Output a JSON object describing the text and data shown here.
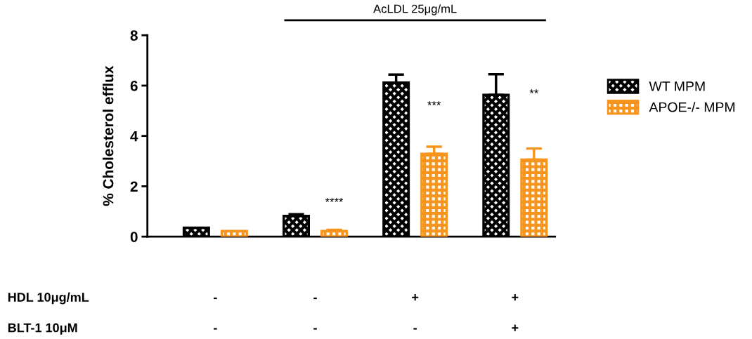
{
  "chart_data": {
    "type": "bar",
    "ylabel": "% Cholesterol efflux",
    "categories": [
      null,
      null,
      null,
      null
    ],
    "series": [
      {
        "name": "WT MPM",
        "color": "#000000",
        "values": [
          0.35,
          0.82,
          6.12,
          5.63
        ],
        "errors": [
          null,
          0.07,
          0.32,
          0.82
        ]
      },
      {
        "name": "APOE-/- MPM",
        "color": "#f7941d",
        "values": [
          0.22,
          0.22,
          3.29,
          3.06
        ],
        "errors": [
          null,
          0.05,
          0.28,
          0.44
        ]
      }
    ],
    "ylim": [
      0,
      8
    ],
    "yticks": [
      0,
      2,
      4,
      6,
      8
    ],
    "grid": false,
    "legend": "right",
    "annotations": [
      "AcLDL 25μg/mL",
      "****",
      "***",
      "**",
      "HDL 10μg/mL",
      "-",
      "-",
      "+",
      "+",
      "BLT-1 10μM",
      "-",
      "-",
      "-",
      "+"
    ]
  }
}
